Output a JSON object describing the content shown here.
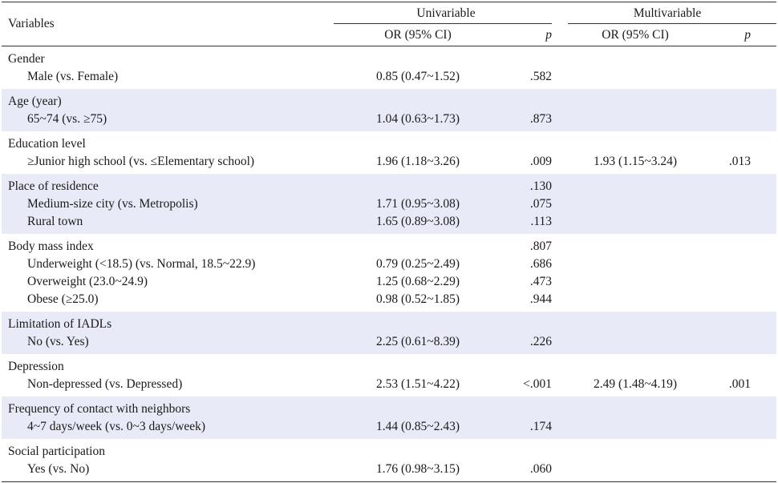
{
  "header": {
    "variables": "Variables",
    "univariable": "Univariable",
    "multivariable": "Multivariable",
    "or_ci": "OR (95% CI)",
    "p": "p"
  },
  "groups": [
    {
      "title": "Gender",
      "rows": [
        {
          "label": "Male (vs. Female)",
          "uni_or": "0.85 (0.47~1.52)",
          "uni_p": ".582",
          "multi_or": "",
          "multi_p": ""
        }
      ]
    },
    {
      "title": "Age (year)",
      "rows": [
        {
          "label": "65~74 (vs. ≥75)",
          "uni_or": "1.04 (0.63~1.73)",
          "uni_p": ".873",
          "multi_or": "",
          "multi_p": ""
        }
      ]
    },
    {
      "title": "Education level",
      "rows": [
        {
          "label": "≥Junior high school (vs. ≤Elementary school)",
          "uni_or": "1.96 (1.18~3.26)",
          "uni_p": ".009",
          "multi_or": "1.93 (1.15~3.24)",
          "multi_p": ".013"
        }
      ]
    },
    {
      "title": "Place of residence",
      "title_p": ".130",
      "rows": [
        {
          "label": "Medium-size city (vs. Metropolis)",
          "uni_or": "1.71 (0.95~3.08)",
          "uni_p": ".075",
          "multi_or": "",
          "multi_p": ""
        },
        {
          "label": "Rural town",
          "uni_or": "1.65 (0.89~3.08)",
          "uni_p": ".113",
          "multi_or": "",
          "multi_p": ""
        }
      ]
    },
    {
      "title": "Body mass index",
      "title_p": ".807",
      "rows": [
        {
          "label": "Underweight (<18.5) (vs. Normal, 18.5~22.9)",
          "uni_or": "0.79 (0.25~2.49)",
          "uni_p": ".686",
          "multi_or": "",
          "multi_p": ""
        },
        {
          "label": "Overweight (23.0~24.9)",
          "uni_or": "1.25 (0.68~2.29)",
          "uni_p": ".473",
          "multi_or": "",
          "multi_p": ""
        },
        {
          "label": "Obese (≥25.0)",
          "uni_or": "0.98 (0.52~1.85)",
          "uni_p": ".944",
          "multi_or": "",
          "multi_p": ""
        }
      ]
    },
    {
      "title": "Limitation of IADLs",
      "rows": [
        {
          "label": "No (vs. Yes)",
          "uni_or": "2.25 (0.61~8.39)",
          "uni_p": ".226",
          "multi_or": "",
          "multi_p": ""
        }
      ]
    },
    {
      "title": "Depression",
      "rows": [
        {
          "label": "Non-depressed (vs. Depressed)",
          "uni_or": "2.53 (1.51~4.22)",
          "uni_p": "<.001",
          "multi_or": "2.49 (1.48~4.19)",
          "multi_p": ".001"
        }
      ]
    },
    {
      "title": "Frequency of contact with neighbors",
      "rows": [
        {
          "label": "4~7 days/week (vs. 0~3 days/week)",
          "uni_or": "1.44 (0.85~2.43)",
          "uni_p": ".174",
          "multi_or": "",
          "multi_p": ""
        }
      ]
    },
    {
      "title": "Social participation",
      "rows": [
        {
          "label": "Yes (vs. No)",
          "uni_or": "1.76 (0.98~3.15)",
          "uni_p": ".060",
          "multi_or": "",
          "multi_p": ""
        }
      ]
    }
  ]
}
